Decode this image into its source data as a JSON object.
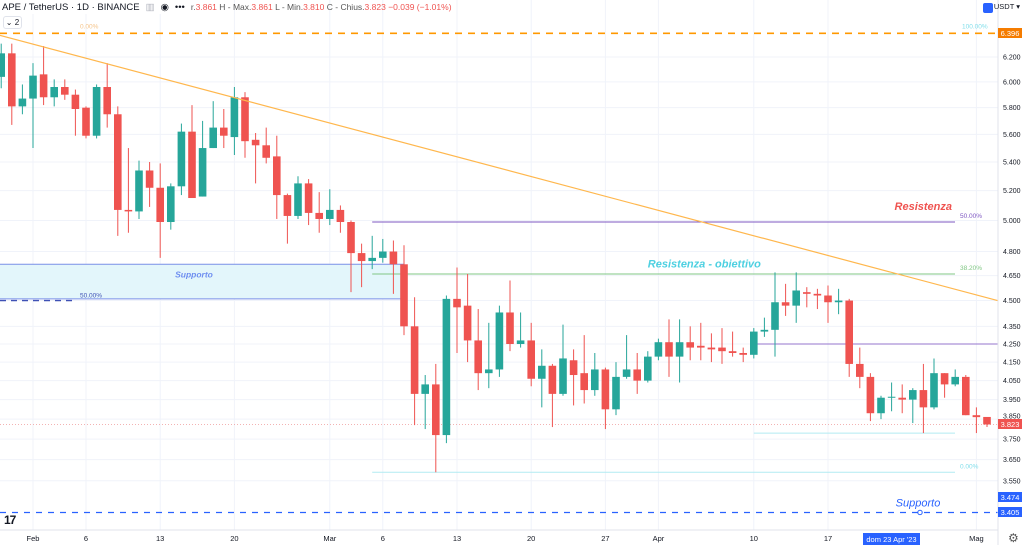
{
  "header": {
    "symbol": "APE / TetherUS · 1D · BINANCE",
    "open_label": "r.",
    "open": "3.861",
    "high_label": "H - Max.",
    "high": "3.861",
    "low_label": "L - Min.",
    "low": "3.810",
    "close_label": "C - Chius.",
    "close": "3.823",
    "change": "−0.039 (−1.01%)",
    "indicators_count": "2",
    "currency": "USDT"
  },
  "colors": {
    "up": "#26a69a",
    "down": "#ef5350",
    "trendline": "#ff9800",
    "support": "#2962ff",
    "fib_50": "#7e57c2",
    "fib_382": "#81c784",
    "fib_0": "#b2ebf2"
  },
  "chart_data": {
    "type": "candlestick",
    "y_scale": "log",
    "grid": true,
    "y_ticks": [
      "6.200",
      "6.000",
      "5.800",
      "5.600",
      "5.400",
      "5.200",
      "5.000",
      "4.800",
      "4.650",
      "4.500",
      "4.350",
      "4.250",
      "4.150",
      "4.050",
      "3.950",
      "3.850",
      "3.750",
      "3.650",
      "3.550"
    ],
    "x_ticks": [
      {
        "date": "2023-02-01",
        "label": "Feb"
      },
      {
        "date": "2023-02-06",
        "label": "6"
      },
      {
        "date": "2023-02-13",
        "label": "13"
      },
      {
        "date": "2023-02-20",
        "label": "20"
      },
      {
        "date": "2023-03-01",
        "label": "Mar"
      },
      {
        "date": "2023-03-06",
        "label": "6"
      },
      {
        "date": "2023-03-13",
        "label": "13"
      },
      {
        "date": "2023-03-20",
        "label": "20"
      },
      {
        "date": "2023-03-27",
        "label": "27"
      },
      {
        "date": "2023-04-01",
        "label": "Apr"
      },
      {
        "date": "2023-04-10",
        "label": "10"
      },
      {
        "date": "2023-04-17",
        "label": "17"
      },
      {
        "date": "2023-05-01",
        "label": "Mag"
      }
    ],
    "crosshair_date_label": "dom 23 Apr '23",
    "price_tags": [
      {
        "value": "6.396",
        "color": "#f57c00"
      },
      {
        "value": "3.823",
        "color": "#ef5350"
      },
      {
        "value": "3.474",
        "color": "#2962ff"
      },
      {
        "value": "3.405",
        "color": "#2962ff"
      }
    ],
    "candles_fields": [
      "date",
      "open",
      "high",
      "low",
      "close"
    ],
    "candles": [
      [
        "2023-01-29",
        6.04,
        6.31,
        5.95,
        6.23
      ],
      [
        "2023-01-30",
        6.23,
        6.31,
        5.67,
        5.81
      ],
      [
        "2023-01-31",
        5.81,
        5.98,
        5.75,
        5.87
      ],
      [
        "2023-02-01",
        5.87,
        6.15,
        5.5,
        6.05
      ],
      [
        "2023-02-02",
        6.06,
        6.29,
        5.82,
        5.88
      ],
      [
        "2023-02-03",
        5.88,
        6.02,
        5.81,
        5.96
      ],
      [
        "2023-02-04",
        5.96,
        6.02,
        5.86,
        5.9
      ],
      [
        "2023-02-05",
        5.9,
        5.94,
        5.59,
        5.79
      ],
      [
        "2023-02-06",
        5.8,
        5.81,
        5.57,
        5.59
      ],
      [
        "2023-02-07",
        5.59,
        5.98,
        5.57,
        5.96
      ],
      [
        "2023-02-08",
        5.96,
        6.15,
        5.65,
        5.75
      ],
      [
        "2023-02-09",
        5.75,
        5.81,
        4.9,
        5.07
      ],
      [
        "2023-02-10",
        5.07,
        5.5,
        4.92,
        5.06
      ],
      [
        "2023-02-11",
        5.06,
        5.41,
        5.01,
        5.34
      ],
      [
        "2023-02-12",
        5.34,
        5.4,
        5.09,
        5.22
      ],
      [
        "2023-02-13",
        5.22,
        5.39,
        4.76,
        4.99
      ],
      [
        "2023-02-14",
        4.99,
        5.25,
        4.94,
        5.23
      ],
      [
        "2023-02-15",
        5.23,
        5.68,
        5.17,
        5.62
      ],
      [
        "2023-02-16",
        5.62,
        5.82,
        5.15,
        5.15
      ],
      [
        "2023-02-17",
        5.16,
        5.7,
        5.16,
        5.5
      ],
      [
        "2023-02-18",
        5.5,
        5.85,
        5.5,
        5.65
      ],
      [
        "2023-02-19",
        5.65,
        5.79,
        5.5,
        5.59
      ],
      [
        "2023-02-20",
        5.58,
        5.96,
        5.45,
        5.88
      ],
      [
        "2023-02-21",
        5.88,
        5.92,
        5.43,
        5.55
      ],
      [
        "2023-02-22",
        5.56,
        5.61,
        5.25,
        5.52
      ],
      [
        "2023-02-23",
        5.52,
        5.65,
        5.39,
        5.43
      ],
      [
        "2023-02-24",
        5.44,
        5.59,
        5.01,
        5.17
      ],
      [
        "2023-02-25",
        5.17,
        5.18,
        4.85,
        5.03
      ],
      [
        "2023-02-26",
        5.03,
        5.3,
        5.01,
        5.25
      ],
      [
        "2023-02-27",
        5.25,
        5.28,
        4.97,
        5.05
      ],
      [
        "2023-02-28",
        5.05,
        5.19,
        4.92,
        5.01
      ],
      [
        "2023-03-01",
        5.01,
        5.21,
        4.97,
        5.07
      ],
      [
        "2023-03-02",
        5.07,
        5.1,
        4.92,
        4.99
      ],
      [
        "2023-03-03",
        4.99,
        5.0,
        4.55,
        4.79
      ],
      [
        "2023-03-04",
        4.79,
        4.85,
        4.58,
        4.74
      ],
      [
        "2023-03-05",
        4.74,
        4.9,
        4.69,
        4.76
      ],
      [
        "2023-03-06",
        4.76,
        4.88,
        4.73,
        4.8
      ],
      [
        "2023-03-07",
        4.8,
        4.87,
        4.54,
        4.72
      ],
      [
        "2023-03-08",
        4.72,
        4.84,
        4.3,
        4.35
      ],
      [
        "2023-03-09",
        4.35,
        4.52,
        3.82,
        3.98
      ],
      [
        "2023-03-10",
        3.98,
        4.08,
        3.8,
        4.03
      ],
      [
        "2023-03-11",
        4.03,
        4.14,
        3.59,
        3.77
      ],
      [
        "2023-03-12",
        3.77,
        4.53,
        3.73,
        4.51
      ],
      [
        "2023-03-13",
        4.51,
        4.7,
        4.2,
        4.46
      ],
      [
        "2023-03-14",
        4.47,
        4.66,
        4.15,
        4.27
      ],
      [
        "2023-03-15",
        4.27,
        4.45,
        4.0,
        4.09
      ],
      [
        "2023-03-16",
        4.09,
        4.37,
        4.01,
        4.11
      ],
      [
        "2023-03-17",
        4.11,
        4.47,
        4.07,
        4.43
      ],
      [
        "2023-03-18",
        4.43,
        4.62,
        4.21,
        4.25
      ],
      [
        "2023-03-19",
        4.25,
        4.43,
        4.23,
        4.27
      ],
      [
        "2023-03-20",
        4.27,
        4.37,
        4.02,
        4.06
      ],
      [
        "2023-03-21",
        4.06,
        4.22,
        3.91,
        4.13
      ],
      [
        "2023-03-22",
        4.13,
        4.14,
        3.81,
        3.98
      ],
      [
        "2023-03-23",
        3.98,
        4.36,
        3.97,
        4.17
      ],
      [
        "2023-03-24",
        4.16,
        4.22,
        3.92,
        4.08
      ],
      [
        "2023-03-25",
        4.09,
        4.3,
        3.93,
        4.0
      ],
      [
        "2023-03-26",
        4.0,
        4.2,
        3.97,
        4.11
      ],
      [
        "2023-03-27",
        4.11,
        4.12,
        3.8,
        3.9
      ],
      [
        "2023-03-28",
        3.9,
        4.15,
        3.87,
        4.07
      ],
      [
        "2023-03-29",
        4.07,
        4.3,
        4.06,
        4.11
      ],
      [
        "2023-03-30",
        4.11,
        4.2,
        3.98,
        4.05
      ],
      [
        "2023-03-31",
        4.05,
        4.21,
        4.04,
        4.18
      ],
      [
        "2023-04-01",
        4.18,
        4.28,
        4.16,
        4.26
      ],
      [
        "2023-04-02",
        4.26,
        4.39,
        4.07,
        4.18
      ],
      [
        "2023-04-03",
        4.18,
        4.39,
        4.04,
        4.26
      ],
      [
        "2023-04-04",
        4.26,
        4.35,
        4.16,
        4.23
      ],
      [
        "2023-04-05",
        4.24,
        4.37,
        4.16,
        4.23
      ],
      [
        "2023-04-06",
        4.23,
        4.31,
        4.15,
        4.22
      ],
      [
        "2023-04-07",
        4.23,
        4.34,
        4.14,
        4.21
      ],
      [
        "2023-04-08",
        4.21,
        4.32,
        4.18,
        4.2
      ],
      [
        "2023-04-09",
        4.2,
        4.23,
        4.15,
        4.19
      ],
      [
        "2023-04-10",
        4.19,
        4.34,
        4.17,
        4.32
      ],
      [
        "2023-04-11",
        4.32,
        4.4,
        4.29,
        4.33
      ],
      [
        "2023-04-12",
        4.33,
        4.67,
        4.18,
        4.49
      ],
      [
        "2023-04-13",
        4.49,
        4.6,
        4.41,
        4.47
      ],
      [
        "2023-04-14",
        4.47,
        4.67,
        4.37,
        4.56
      ],
      [
        "2023-04-15",
        4.55,
        4.58,
        4.46,
        4.54
      ],
      [
        "2023-04-16",
        4.54,
        4.57,
        4.45,
        4.53
      ],
      [
        "2023-04-17",
        4.53,
        4.59,
        4.37,
        4.49
      ],
      [
        "2023-04-18",
        4.49,
        4.57,
        4.42,
        4.5
      ],
      [
        "2023-04-19",
        4.5,
        4.51,
        4.07,
        4.14
      ],
      [
        "2023-04-20",
        4.14,
        4.23,
        4.01,
        4.07
      ],
      [
        "2023-04-21",
        4.07,
        4.09,
        3.84,
        3.88
      ],
      [
        "2023-04-22",
        3.88,
        3.97,
        3.85,
        3.96
      ],
      [
        "2023-04-23",
        3.96,
        4.04,
        3.89,
        3.965
      ],
      [
        "2023-04-24",
        3.96,
        4.03,
        3.88,
        3.95
      ],
      [
        "2023-04-25",
        3.95,
        4.01,
        3.83,
        4.0
      ],
      [
        "2023-04-26",
        4.0,
        4.14,
        3.78,
        3.91
      ],
      [
        "2023-04-27",
        3.91,
        4.17,
        3.9,
        4.09
      ],
      [
        "2023-04-28",
        4.09,
        4.09,
        3.96,
        4.03
      ],
      [
        "2023-04-29",
        4.03,
        4.11,
        4.02,
        4.07
      ],
      [
        "2023-04-30",
        4.07,
        4.08,
        3.87,
        3.87
      ],
      [
        "2023-05-01",
        3.87,
        3.91,
        3.78,
        3.86
      ],
      [
        "2023-05-02",
        3.861,
        3.861,
        3.81,
        3.823
      ]
    ],
    "drawings": {
      "trendline": {
        "from": [
          "2023-01-28",
          6.4
        ],
        "to": [
          "2023-05-03",
          4.5
        ]
      },
      "fib_top_line": {
        "price": 6.396,
        "label_left": "0.00%",
        "label_right": "100.00%"
      },
      "fib_levels": [
        {
          "price": 4.99,
          "label": "50.00%",
          "from": "2023-03-05",
          "to": "2023-04-30"
        },
        {
          "price": 4.66,
          "label": "38.20%",
          "from": "2023-03-05",
          "to": "2023-04-30"
        },
        {
          "price": 3.59,
          "label": "0.00%",
          "from": "2023-03-05",
          "to": "2023-04-30"
        }
      ],
      "level_4250": {
        "price": 4.25,
        "from": "2023-04-10"
      },
      "level_378": {
        "price": 3.78,
        "from": "2023-04-10",
        "to": "2023-04-30"
      },
      "support_zone": {
        "top": 4.72,
        "bottom": 4.51,
        "to": "2023-03-08",
        "label": "Supporto"
      },
      "left_fib": {
        "price": 4.5,
        "label": "50.00%"
      },
      "support_line": {
        "price": 3.405,
        "label": "Supporto"
      },
      "annotations": [
        {
          "text": "Resistenza",
          "date": "2023-04-24",
          "price": 5.07,
          "color": "#ef5350"
        },
        {
          "text": "Resistenza - obiettivo",
          "date": "2023-03-31",
          "price": 4.7,
          "color": "#4dd0e1"
        }
      ]
    }
  }
}
